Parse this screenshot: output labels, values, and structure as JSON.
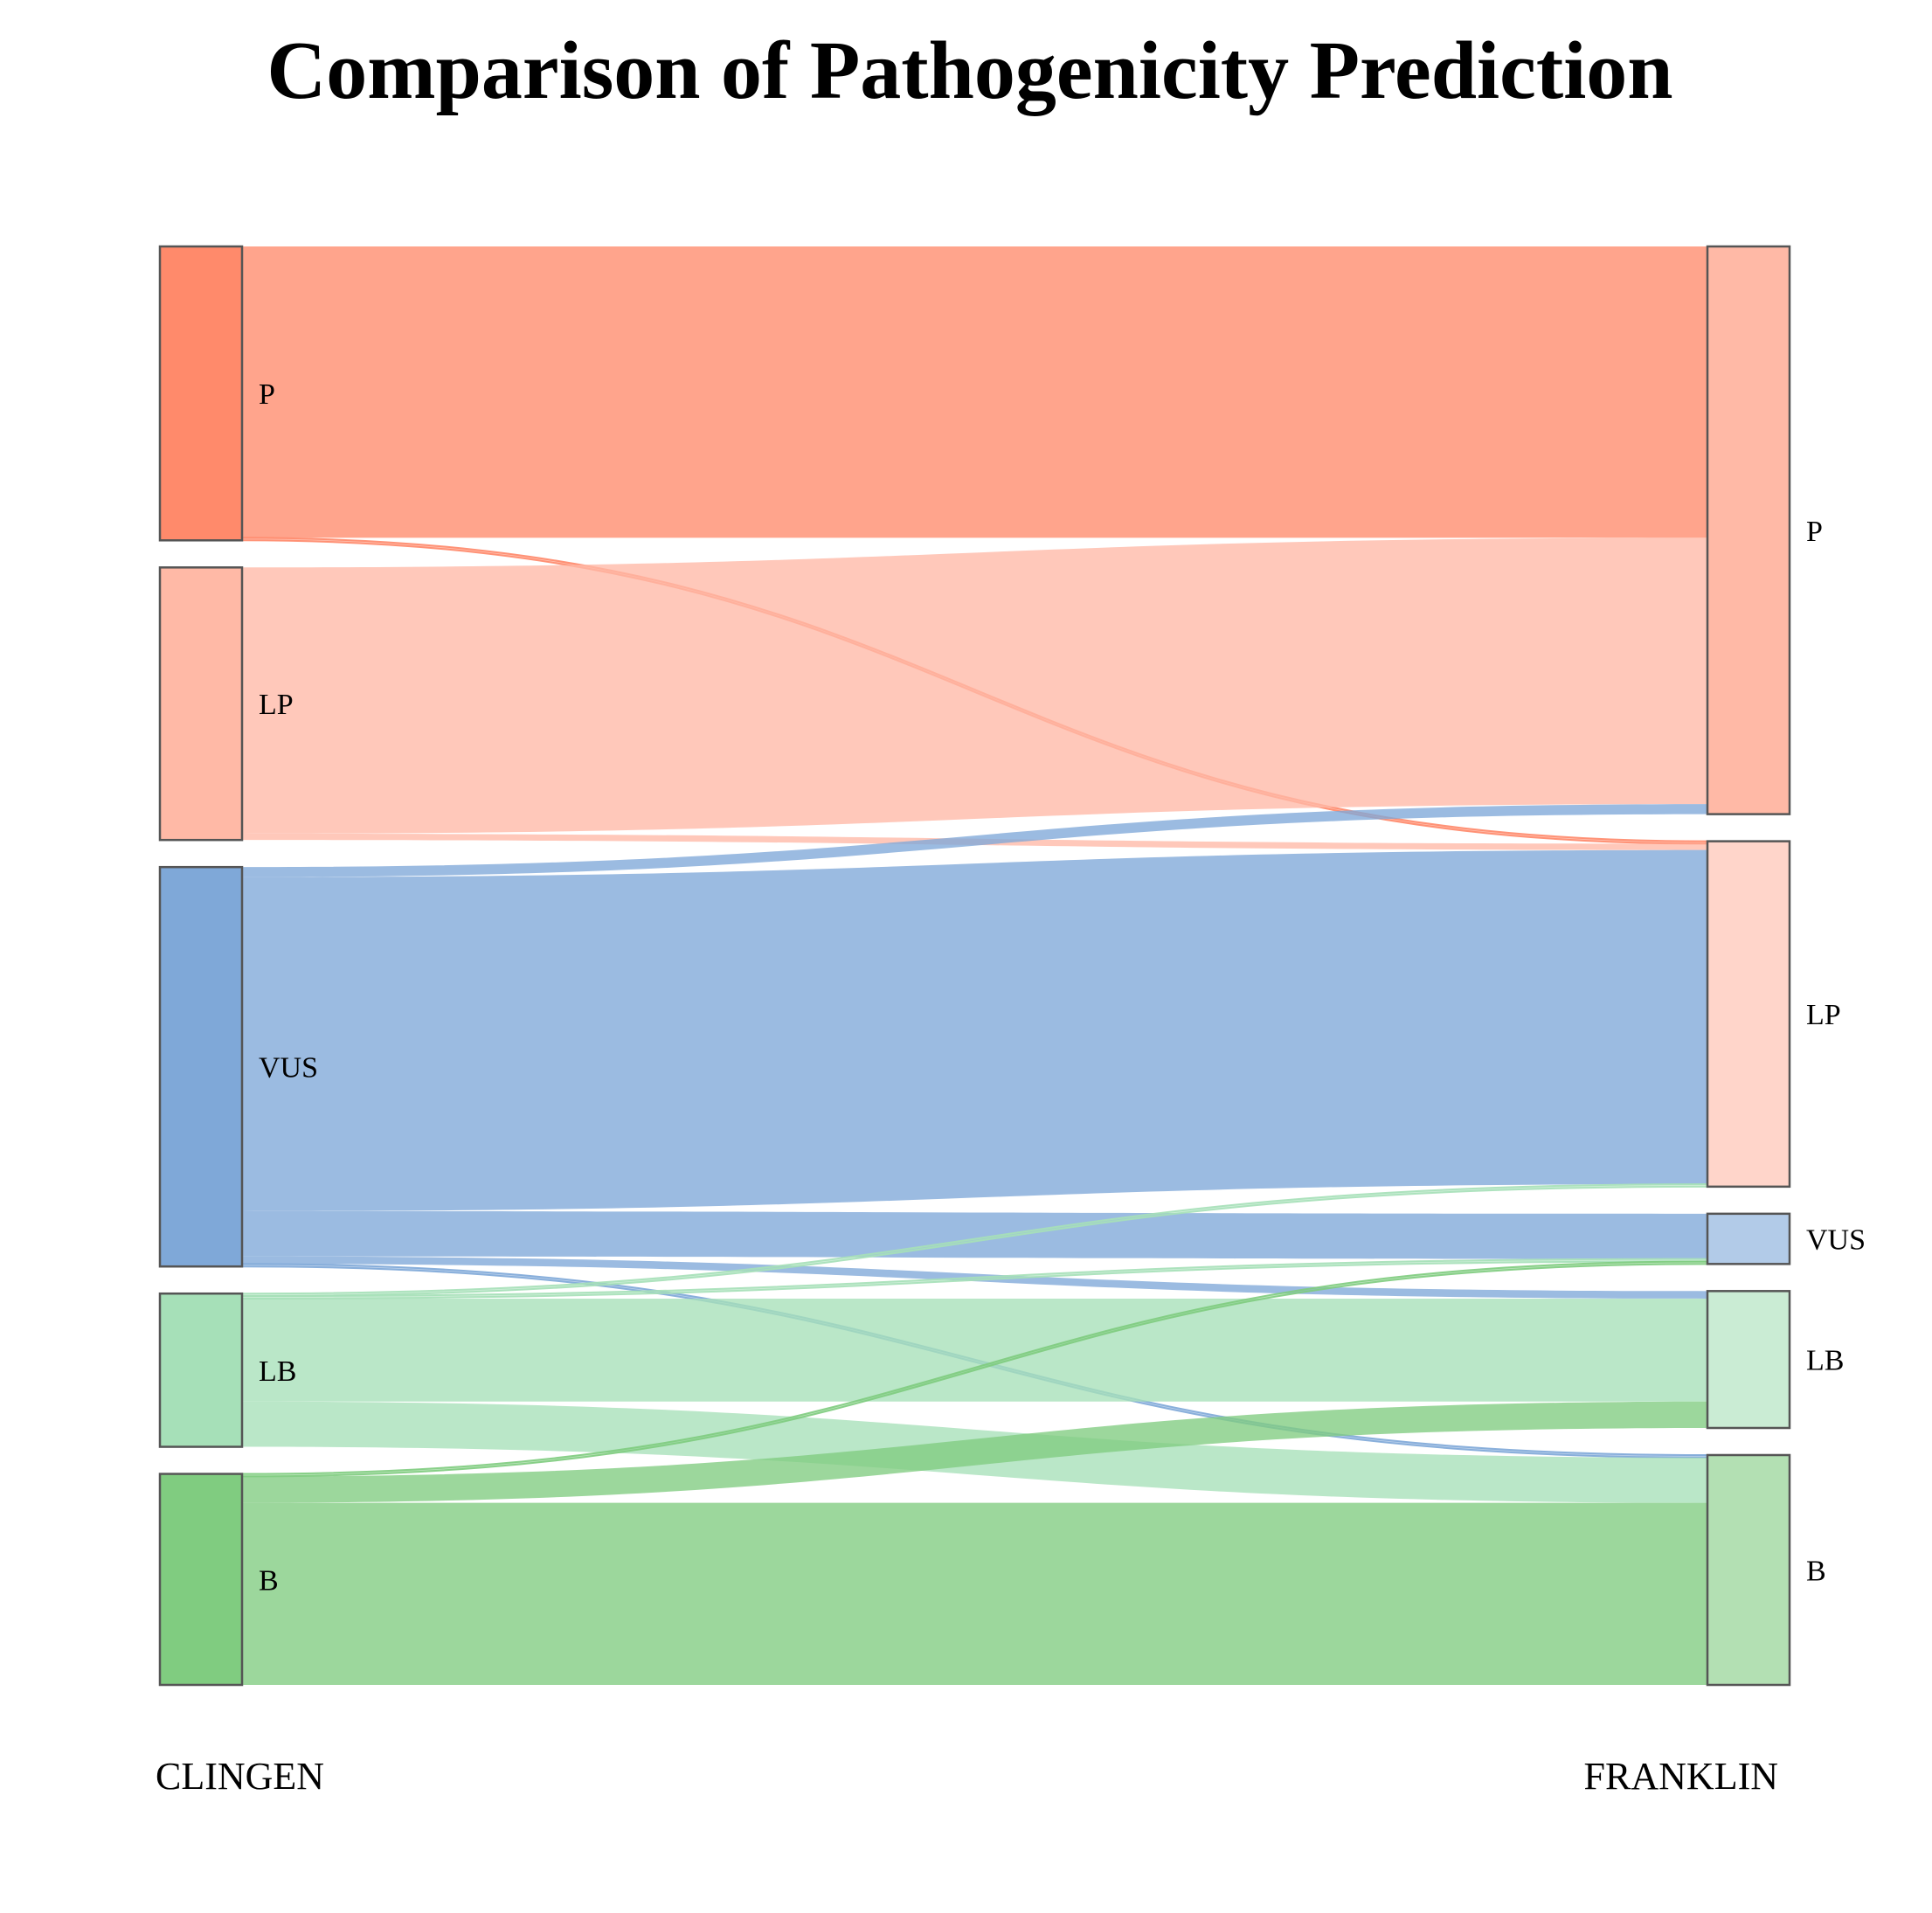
{
  "title": "Comparison of Pathogenicity Prediction",
  "left_axis_label": "CLINGEN",
  "right_axis_label": "FRANKLIN",
  "colors": {
    "P": "#ff8a6b",
    "LP": "#ffb9a6",
    "VUS": "#7fa8d8",
    "LB": "#a6e0b8",
    "B": "#80cc80"
  },
  "chart_data": {
    "type": "sankey",
    "left_nodes": [
      {
        "id": "P",
        "label": "P"
      },
      {
        "id": "LP",
        "label": "LP"
      },
      {
        "id": "VUS",
        "label": "VUS"
      },
      {
        "id": "LB",
        "label": "LB"
      },
      {
        "id": "B",
        "label": "B"
      }
    ],
    "right_nodes": [
      {
        "id": "P",
        "label": "P"
      },
      {
        "id": "LP",
        "label": "LP"
      },
      {
        "id": "VUS",
        "label": "VUS"
      },
      {
        "id": "LB",
        "label": "LB"
      },
      {
        "id": "B",
        "label": "B"
      }
    ],
    "links": [
      {
        "source": "P",
        "target": "P",
        "value": 232
      },
      {
        "source": "P",
        "target": "LP",
        "value": 2
      },
      {
        "source": "LP",
        "target": "P",
        "value": 212
      },
      {
        "source": "LP",
        "target": "LP",
        "value": 5
      },
      {
        "source": "VUS",
        "target": "P",
        "value": 8
      },
      {
        "source": "VUS",
        "target": "LP",
        "value": 266
      },
      {
        "source": "VUS",
        "target": "VUS",
        "value": 36
      },
      {
        "source": "VUS",
        "target": "LB",
        "value": 6
      },
      {
        "source": "VUS",
        "target": "B",
        "value": 2
      },
      {
        "source": "LB",
        "target": "LP",
        "value": 2
      },
      {
        "source": "LB",
        "target": "VUS",
        "value": 2
      },
      {
        "source": "LB",
        "target": "LB",
        "value": 82
      },
      {
        "source": "LB",
        "target": "B",
        "value": 36
      },
      {
        "source": "B",
        "target": "VUS",
        "value": 2
      },
      {
        "source": "B",
        "target": "LB",
        "value": 21
      },
      {
        "source": "B",
        "target": "B",
        "value": 145
      }
    ]
  }
}
